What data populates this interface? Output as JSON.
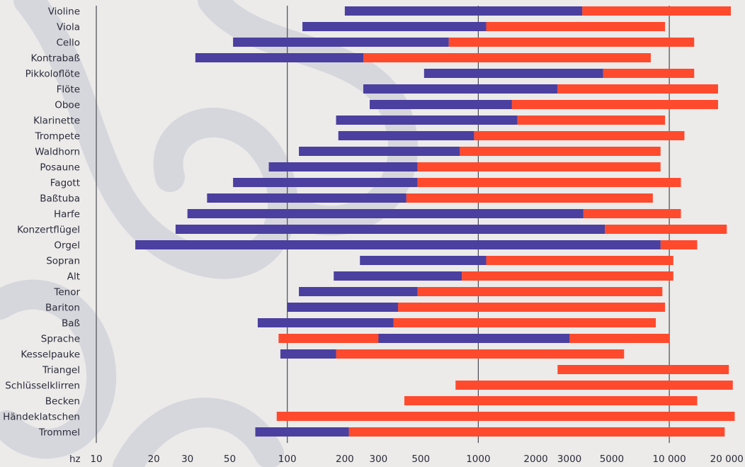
{
  "chart_data": {
    "type": "bar",
    "orientation": "horizontal",
    "x_scale": "log",
    "xlim": [
      10,
      22000
    ],
    "xunit": "hz",
    "x_ticks": [
      10,
      20,
      30,
      50,
      100,
      200,
      300,
      500,
      1000,
      2000,
      3000,
      5000,
      10000,
      20000
    ],
    "x_tick_labels": [
      "10",
      "20",
      "30",
      "50",
      "100",
      "200",
      "300",
      "500",
      "1000",
      "2000",
      "3000",
      "5000",
      "10 000",
      "20 000"
    ],
    "gridlines_at": [
      100,
      1000,
      10000
    ],
    "colors": {
      "fundamental": "#4b3fa0",
      "overtones": "#ff4a2e"
    },
    "categories": [
      "Violine",
      "Viola",
      "Cello",
      "Kontrabaß",
      "Pikkoloflöte",
      "Flöte",
      "Oboe",
      "Klarinette",
      "Trompete",
      "Waldhorn",
      "Posaune",
      "Fagott",
      "Baßtuba",
      "Harfe",
      "Konzertflügel",
      "Orgel",
      "Sopran",
      "Alt",
      "Tenor",
      "Bariton",
      "Baß",
      "Sprache",
      "Kesselpauke",
      "Triangel",
      "Schlüsselklirren",
      "Becken",
      "Händeklatschen",
      "Trommel"
    ],
    "series": [
      {
        "values": [
          [
            200,
            3500
          ],
          [
            120,
            1100
          ],
          [
            52,
            700
          ],
          [
            33,
            250
          ],
          [
            520,
            4500
          ],
          [
            250,
            2600
          ],
          [
            270,
            1500
          ],
          [
            180,
            1600
          ],
          [
            185,
            950
          ],
          [
            115,
            800
          ],
          [
            80,
            480
          ],
          [
            52,
            480
          ],
          [
            38,
            420
          ],
          [
            30,
            3550
          ],
          [
            26,
            4600
          ],
          [
            16,
            9000
          ],
          [
            240,
            1100
          ],
          [
            175,
            820
          ],
          [
            115,
            480
          ],
          [
            100,
            380
          ],
          [
            70,
            360
          ],
          [
            300,
            3000
          ],
          [
            92,
            180
          ],
          [
            null,
            null
          ],
          [
            null,
            null
          ],
          [
            null,
            null
          ],
          [
            null,
            null
          ],
          [
            68,
            210
          ]
        ]
      },
      {
        "values": [
          [
            3500,
            21000
          ],
          [
            1100,
            9500
          ],
          [
            700,
            13500
          ],
          [
            250,
            8000
          ],
          [
            4500,
            13500
          ],
          [
            2600,
            18000
          ],
          [
            1500,
            18000
          ],
          [
            1600,
            9500
          ],
          [
            950,
            12000
          ],
          [
            800,
            9000
          ],
          [
            480,
            9000
          ],
          [
            480,
            11500
          ],
          [
            420,
            8200
          ],
          [
            3550,
            11500
          ],
          [
            4600,
            20000
          ],
          [
            9000,
            14000
          ],
          [
            1100,
            10500
          ],
          [
            820,
            10500
          ],
          [
            480,
            9200
          ],
          [
            380,
            9500
          ],
          [
            360,
            8500
          ],
          [
            90,
            10000
          ],
          [
            180,
            5800
          ],
          [
            2600,
            20500
          ],
          [
            760,
            21500
          ],
          [
            410,
            14000
          ],
          [
            88,
            22000
          ],
          [
            210,
            19500
          ]
        ]
      }
    ]
  }
}
